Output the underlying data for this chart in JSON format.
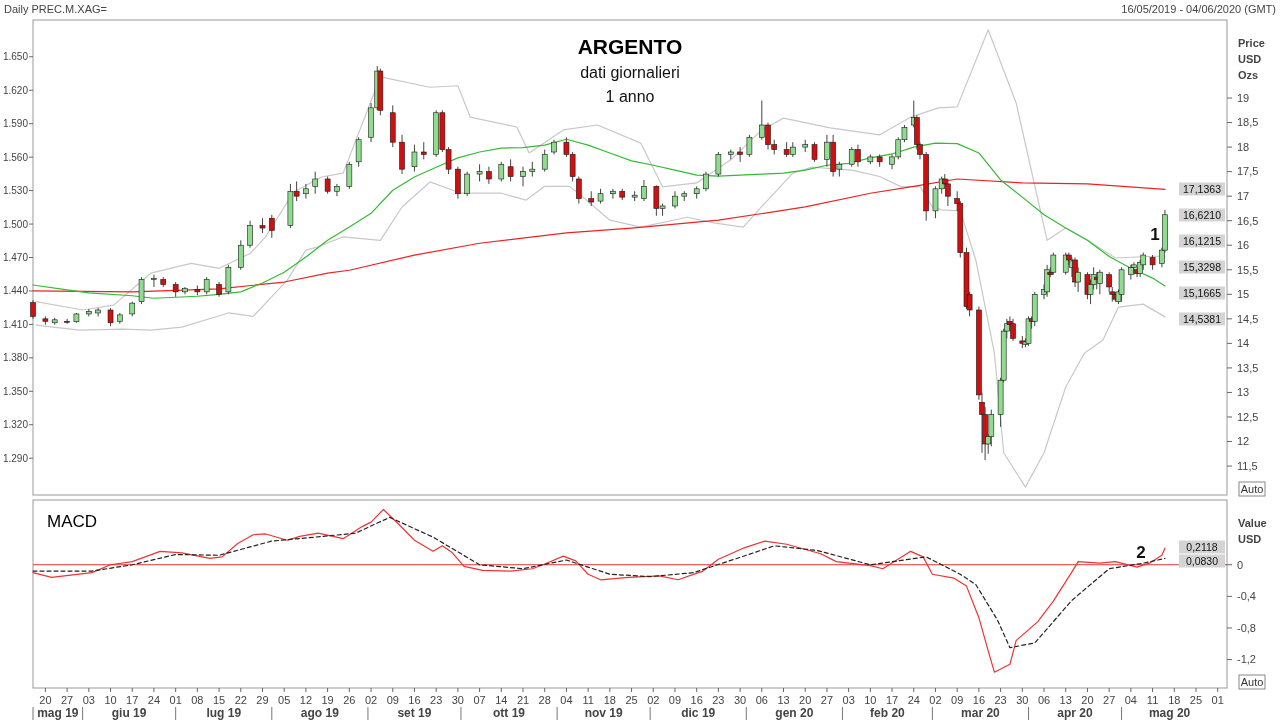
{
  "chart_data": [
    {
      "type": "candlestick",
      "title": "ARGENTO",
      "subtitle": "dati giornalieri\n1 anno",
      "y2label": "Price\nUSD\nOzs",
      "xlim": [
        "2019-05-16",
        "2020-06-04"
      ],
      "ylim": [
        1257,
        1683
      ],
      "yticks": [
        {
          "value": 1290,
          "label": "1.290"
        },
        {
          "value": 1320,
          "label": "1.320"
        },
        {
          "value": 1350,
          "label": "1.350"
        },
        {
          "value": 1380,
          "label": "1.380"
        },
        {
          "value": 1410,
          "label": "1.410"
        },
        {
          "value": 1440,
          "label": "1.440"
        },
        {
          "value": 1470,
          "label": "1.470"
        },
        {
          "value": 1500,
          "label": "1.500"
        },
        {
          "value": 1530,
          "label": "1.530"
        },
        {
          "value": 1560,
          "label": "1.560"
        },
        {
          "value": 1590,
          "label": "1.590"
        },
        {
          "value": 1620,
          "label": "1.620"
        },
        {
          "value": 1650,
          "label": "1.650"
        }
      ],
      "y2lim": [
        10.91,
        20.59
      ],
      "y2ticks": [
        {
          "value": 11.5,
          "label": "11,5"
        },
        12,
        {
          "value": 12.5,
          "label": "12,5"
        },
        13,
        {
          "value": 13.5,
          "label": "13,5"
        },
        14,
        {
          "value": 14.5,
          "label": "14,5"
        },
        15,
        {
          "value": 15.5,
          "label": "15,5"
        },
        16,
        {
          "value": 16.5,
          "label": "16,5"
        },
        17,
        {
          "value": 17.5,
          "label": "17,5"
        },
        18,
        {
          "value": 18.5,
          "label": "18,5"
        },
        19
      ],
      "tick_labels": "y",
      "series": [
        {
          "type": "line",
          "axis": "y2",
          "color": "#c8c8c8",
          "x": [
            "2019-05-17",
            "2019-06-01",
            "2019-06-11",
            "2019-06-23",
            "2019-07-06",
            "2019-07-15",
            "2019-07-25",
            "2019-07-30",
            "2019-08-08",
            "2019-08-17",
            "2019-08-24",
            "2019-09-05",
            "2019-09-21",
            "2019-09-30",
            "2019-10-04",
            "2019-10-19",
            "2019-10-23",
            "2019-11-03",
            "2019-11-14",
            "2019-11-28",
            "2019-12-05",
            "2019-12-16",
            "2019-12-27",
            "2020-01-06",
            "2020-01-13",
            "2020-01-28",
            "2020-02-13",
            "2020-02-23",
            "2020-03-03",
            "2020-03-09",
            "2020-03-19",
            "2020-03-28",
            "2020-04-07",
            "2020-04-13",
            "2020-04-20",
            "2020-04-29",
            "2020-05-09",
            "2020-05-15"
          ],
          "values": [
            14.85,
            14.68,
            14.78,
            15.43,
            15.63,
            15.53,
            15.83,
            16.17,
            17.08,
            17.39,
            17.47,
            19.43,
            19.22,
            19.25,
            18.61,
            18.41,
            17.88,
            18.35,
            18.45,
            18.08,
            17.19,
            17.27,
            17.74,
            18.35,
            18.59,
            18.39,
            18.25,
            18.61,
            18.8,
            18.82,
            20.39,
            18.9,
            16.1,
            16.35,
            16.1,
            15.74,
            15.77,
            15.78
          ]
        },
        {
          "type": "line",
          "axis": "y2",
          "color": "#c8c8c8",
          "x": [
            "2019-05-17",
            "2019-05-31",
            "2019-06-14",
            "2019-06-23",
            "2019-07-03",
            "2019-07-18",
            "2019-07-26",
            "2019-08-06",
            "2019-08-12",
            "2019-08-15",
            "2019-08-24",
            "2019-09-05",
            "2019-09-12",
            "2019-09-21",
            "2019-10-01",
            "2019-10-14",
            "2019-10-22",
            "2019-10-28",
            "2019-11-05",
            "2019-11-09",
            "2019-11-18",
            "2019-11-28",
            "2019-12-13",
            "2019-12-22",
            "2019-12-31",
            "2020-01-05",
            "2020-01-16",
            "2020-01-22",
            "2020-02-04",
            "2020-02-13",
            "2020-02-20",
            "2020-02-26",
            "2020-03-01",
            "2020-03-04",
            "2020-03-10",
            "2020-03-15",
            "2020-03-21",
            "2020-03-24",
            "2020-03-31",
            "2020-04-06",
            "2020-04-13",
            "2020-04-19",
            "2020-04-25",
            "2020-04-30",
            "2020-05-08",
            "2020-05-15"
          ],
          "values": [
            14.37,
            14.27,
            14.29,
            14.27,
            14.33,
            14.62,
            14.55,
            15.29,
            15.9,
            15.95,
            16.17,
            16.1,
            16.78,
            17.29,
            17.06,
            17.06,
            16.92,
            17.2,
            17.2,
            17.0,
            16.51,
            16.37,
            16.57,
            16.45,
            16.37,
            16.72,
            17.47,
            17.59,
            17.53,
            17.4,
            17.19,
            17.2,
            16.78,
            16.72,
            16.7,
            15.7,
            13.8,
            11.77,
            11.07,
            11.77,
            13.11,
            13.8,
            14.07,
            14.74,
            14.8,
            14.54
          ]
        },
        {
          "type": "line",
          "axis": "y2",
          "color": "#ee2222",
          "x": [
            "2019-05-16",
            "2019-06-17",
            "2019-07-15",
            "2019-08-05",
            "2019-08-19",
            "2019-08-26",
            "2019-09-16",
            "2019-10-07",
            "2019-11-04",
            "2019-11-25",
            "2019-12-23",
            "2020-01-20",
            "2020-02-10",
            "2020-02-24",
            "2020-03-09",
            "2020-03-30",
            "2020-04-20",
            "2020-05-15"
          ],
          "values": [
            15.07,
            15.05,
            15.11,
            15.25,
            15.43,
            15.49,
            15.8,
            16.04,
            16.25,
            16.35,
            16.51,
            16.78,
            17.06,
            17.2,
            17.35,
            17.27,
            17.25,
            17.14
          ]
        },
        {
          "type": "line",
          "axis": "y2",
          "color": "#33bb33",
          "x": [
            "2019-05-16",
            "2019-05-27",
            "2019-06-03",
            "2019-06-17",
            "2019-06-24",
            "2019-07-08",
            "2019-07-15",
            "2019-07-22",
            "2019-07-29",
            "2019-08-05",
            "2019-08-12",
            "2019-08-19",
            "2019-08-26",
            "2019-09-02",
            "2019-09-09",
            "2019-09-16",
            "2019-09-23",
            "2019-09-30",
            "2019-10-07",
            "2019-10-14",
            "2019-10-21",
            "2019-10-28",
            "2019-11-04",
            "2019-11-11",
            "2019-11-18",
            "2019-11-25",
            "2019-12-02",
            "2019-12-09",
            "2019-12-16",
            "2019-12-23",
            "2019-12-30",
            "2020-01-06",
            "2020-01-13",
            "2020-01-20",
            "2020-01-27",
            "2020-02-03",
            "2020-02-10",
            "2020-02-17",
            "2020-02-24",
            "2020-03-02",
            "2020-03-09",
            "2020-03-16",
            "2020-03-23",
            "2020-03-30",
            "2020-04-06",
            "2020-04-13",
            "2020-04-20",
            "2020-04-27",
            "2020-05-04",
            "2020-05-11",
            "2020-05-15"
          ],
          "values": [
            15.19,
            15.09,
            15.03,
            14.97,
            14.92,
            14.96,
            15.0,
            15.05,
            15.23,
            15.45,
            15.76,
            16.1,
            16.37,
            16.65,
            17.12,
            17.39,
            17.59,
            17.78,
            17.9,
            17.98,
            17.99,
            18.04,
            18.16,
            18.04,
            17.88,
            17.72,
            17.63,
            17.53,
            17.43,
            17.41,
            17.43,
            17.45,
            17.47,
            17.53,
            17.63,
            17.67,
            17.78,
            17.86,
            18.0,
            18.08,
            18.07,
            17.88,
            17.33,
            16.98,
            16.62,
            16.35,
            16.1,
            15.77,
            15.53,
            15.33,
            15.17
          ]
        },
        {
          "axis": "y2",
          "x": [
            "2019-05-16",
            "2019-05-20",
            "2019-05-23",
            "2019-05-27",
            "2019-05-30",
            "2019-06-03",
            "2019-06-06",
            "2019-06-10",
            "2019-06-13",
            "2019-06-17",
            "2019-06-20",
            "2019-06-24",
            "2019-06-27",
            "2019-07-01",
            "2019-07-04",
            "2019-07-08",
            "2019-07-11",
            "2019-07-15",
            "2019-07-18",
            "2019-07-22",
            "2019-07-25",
            "2019-07-29",
            "2019-08-01",
            "2019-08-07",
            "2019-08-09",
            "2019-08-12",
            "2019-08-15",
            "2019-08-19",
            "2019-08-22",
            "2019-08-26",
            "2019-08-29",
            "2019-09-02",
            "2019-09-04",
            "2019-09-05",
            "2019-09-09",
            "2019-09-12",
            "2019-09-16",
            "2019-09-19",
            "2019-09-23",
            "2019-09-25",
            "2019-09-27",
            "2019-09-30",
            "2019-10-03",
            "2019-10-07",
            "2019-10-10",
            "2019-10-14",
            "2019-10-17",
            "2019-10-21",
            "2019-10-24",
            "2019-10-28",
            "2019-10-31",
            "2019-11-04",
            "2019-11-06",
            "2019-11-08",
            "2019-11-12",
            "2019-11-15",
            "2019-11-19",
            "2019-11-22",
            "2019-11-26",
            "2019-11-29",
            "2019-12-03",
            "2019-12-05",
            "2019-12-09",
            "2019-12-12",
            "2019-12-16",
            "2019-12-19",
            "2019-12-23",
            "2019-12-27",
            "2019-12-30",
            "2020-01-02",
            "2020-01-06",
            "2020-01-08",
            "2020-01-10",
            "2020-01-14",
            "2020-01-16",
            "2020-01-20",
            "2020-01-23",
            "2020-01-27",
            "2020-01-29",
            "2020-01-31",
            "2020-02-04",
            "2020-02-06",
            "2020-02-10",
            "2020-02-13",
            "2020-02-17",
            "2020-02-19",
            "2020-02-21",
            "2020-02-24",
            "2020-02-25",
            "2020-02-26",
            "2020-02-28",
            "2020-03-02",
            "2020-03-04",
            "2020-03-05",
            "2020-03-06",
            "2020-03-09",
            "2020-03-10",
            "2020-03-12",
            "2020-03-13",
            "2020-03-16",
            "2020-03-17",
            "2020-03-18",
            "2020-03-19",
            "2020-03-20",
            "2020-03-23",
            "2020-03-24",
            "2020-03-25",
            "2020-03-26",
            "2020-03-27",
            "2020-03-30",
            "2020-03-31",
            "2020-04-01",
            "2020-04-02",
            "2020-04-03",
            "2020-04-06",
            "2020-04-07",
            "2020-04-08",
            "2020-04-09",
            "2020-04-13",
            "2020-04-14",
            "2020-04-15",
            "2020-04-16",
            "2020-04-17",
            "2020-04-20",
            "2020-04-21",
            "2020-04-22",
            "2020-04-23",
            "2020-04-24",
            "2020-04-27",
            "2020-04-28",
            "2020-04-29",
            "2020-04-30",
            "2020-05-01",
            "2020-05-04",
            "2020-05-05",
            "2020-05-06",
            "2020-05-07",
            "2020-05-08",
            "2020-05-11",
            "2020-05-14",
            "2020-05-15"
          ],
          "ohlc": [
            [
              14.83,
              14.88,
              14.5,
              14.55
            ],
            [
              14.5,
              14.55,
              14.38,
              14.45
            ],
            [
              14.42,
              14.52,
              14.38,
              14.48
            ],
            [
              14.45,
              14.5,
              14.4,
              14.44
            ],
            [
              14.44,
              14.62,
              14.42,
              14.6
            ],
            [
              14.6,
              14.7,
              14.55,
              14.65
            ],
            [
              14.62,
              14.72,
              14.55,
              14.68
            ],
            [
              14.68,
              14.72,
              14.35,
              14.42
            ],
            [
              14.45,
              14.62,
              14.4,
              14.58
            ],
            [
              14.6,
              14.85,
              14.55,
              14.82
            ],
            [
              14.85,
              15.35,
              14.8,
              15.3
            ],
            [
              15.3,
              15.4,
              15.15,
              15.32
            ],
            [
              15.3,
              15.35,
              15.15,
              15.2
            ],
            [
              15.2,
              15.25,
              14.95,
              15.05
            ],
            [
              15.05,
              15.15,
              15.0,
              15.12
            ],
            [
              15.1,
              15.18,
              14.98,
              15.05
            ],
            [
              15.05,
              15.35,
              15.0,
              15.3
            ],
            [
              15.2,
              15.25,
              14.95,
              15.0
            ],
            [
              15.05,
              15.6,
              15.0,
              15.55
            ],
            [
              15.55,
              16.1,
              15.5,
              16.0
            ],
            [
              16.0,
              16.5,
              15.95,
              16.4
            ],
            [
              16.4,
              16.55,
              16.25,
              16.35
            ],
            [
              16.55,
              16.62,
              16.15,
              16.3
            ],
            [
              16.4,
              17.25,
              16.35,
              17.1
            ],
            [
              17.1,
              17.3,
              16.9,
              17.0
            ],
            [
              17.05,
              17.25,
              16.95,
              17.15
            ],
            [
              17.2,
              17.5,
              17.05,
              17.35
            ],
            [
              17.35,
              17.4,
              17.05,
              17.1
            ],
            [
              17.1,
              17.25,
              17.0,
              17.2
            ],
            [
              17.2,
              17.7,
              17.15,
              17.65
            ],
            [
              17.7,
              18.2,
              17.6,
              18.15
            ],
            [
              18.2,
              18.9,
              18.1,
              18.8
            ],
            [
              18.8,
              19.65,
              18.75,
              19.55
            ],
            [
              19.55,
              19.6,
              18.65,
              18.75
            ],
            [
              18.7,
              18.85,
              18.0,
              18.1
            ],
            [
              18.1,
              18.25,
              17.45,
              17.55
            ],
            [
              17.6,
              18.05,
              17.5,
              17.9
            ],
            [
              17.9,
              18.1,
              17.75,
              17.85
            ],
            [
              17.85,
              18.75,
              17.8,
              18.7
            ],
            [
              18.7,
              18.75,
              17.9,
              17.95
            ],
            [
              17.95,
              18.0,
              17.45,
              17.55
            ],
            [
              17.55,
              17.6,
              16.95,
              17.05
            ],
            [
              17.05,
              17.5,
              17.0,
              17.45
            ],
            [
              17.45,
              17.65,
              17.3,
              17.5
            ],
            [
              17.5,
              17.6,
              17.25,
              17.35
            ],
            [
              17.35,
              17.7,
              17.3,
              17.65
            ],
            [
              17.6,
              17.75,
              17.3,
              17.4
            ],
            [
              17.4,
              17.6,
              17.2,
              17.5
            ],
            [
              17.5,
              17.7,
              17.4,
              17.55
            ],
            [
              17.55,
              17.95,
              17.5,
              17.85
            ],
            [
              17.9,
              18.15,
              17.85,
              18.1
            ],
            [
              18.1,
              18.2,
              17.8,
              17.85
            ],
            [
              17.85,
              17.9,
              17.3,
              17.4
            ],
            [
              17.35,
              17.4,
              16.85,
              16.95
            ],
            [
              16.95,
              17.1,
              16.8,
              16.88
            ],
            [
              16.9,
              17.15,
              16.85,
              17.05
            ],
            [
              17.05,
              17.15,
              16.95,
              17.1
            ],
            [
              17.1,
              17.15,
              16.92,
              16.98
            ],
            [
              16.98,
              17.1,
              16.9,
              17.02
            ],
            [
              16.95,
              17.33,
              16.9,
              17.2
            ],
            [
              17.2,
              17.22,
              16.6,
              16.75
            ],
            [
              16.75,
              16.85,
              16.6,
              16.8
            ],
            [
              16.8,
              17.1,
              16.75,
              17.0
            ],
            [
              17.0,
              17.1,
              16.9,
              17.05
            ],
            [
              17.05,
              17.2,
              16.95,
              17.15
            ],
            [
              17.15,
              17.5,
              17.1,
              17.45
            ],
            [
              17.45,
              17.9,
              17.4,
              17.85
            ],
            [
              17.85,
              17.95,
              17.75,
              17.9
            ],
            [
              17.9,
              18.0,
              17.7,
              17.85
            ],
            [
              17.85,
              18.25,
              17.8,
              18.2
            ],
            [
              18.2,
              18.95,
              18.15,
              18.45
            ],
            [
              18.45,
              18.5,
              17.95,
              18.05
            ],
            [
              18.05,
              18.15,
              17.85,
              17.95
            ],
            [
              17.95,
              18.1,
              17.8,
              17.85
            ],
            [
              17.85,
              18.1,
              17.8,
              18.0
            ],
            [
              18.0,
              18.15,
              17.9,
              18.05
            ],
            [
              18.05,
              18.1,
              17.7,
              17.75
            ],
            [
              17.75,
              18.25,
              17.6,
              18.1
            ],
            [
              18.1,
              18.25,
              17.4,
              17.5
            ],
            [
              17.55,
              17.7,
              17.4,
              17.65
            ],
            [
              17.65,
              18.0,
              17.6,
              17.95
            ],
            [
              17.95,
              18.05,
              17.6,
              17.7
            ],
            [
              17.7,
              17.85,
              17.65,
              17.8
            ],
            [
              17.8,
              17.85,
              17.6,
              17.7
            ],
            [
              17.65,
              17.85,
              17.55,
              17.8
            ],
            [
              17.8,
              18.2,
              17.75,
              18.15
            ],
            [
              18.15,
              18.45,
              18.1,
              18.4
            ],
            [
              18.45,
              18.95,
              18.4,
              18.6
            ],
            [
              18.6,
              18.65,
              17.95,
              18.05
            ],
            [
              18.05,
              18.1,
              17.75,
              17.85
            ],
            [
              17.85,
              17.9,
              16.5,
              16.7
            ],
            [
              16.7,
              17.2,
              16.55,
              17.15
            ],
            [
              17.15,
              17.4,
              17.05,
              17.35
            ],
            [
              17.35,
              17.45,
              17.15,
              17.25
            ],
            [
              17.25,
              17.35,
              16.8,
              17.0
            ],
            [
              16.95,
              17.1,
              16.7,
              16.85
            ],
            [
              16.85,
              16.9,
              15.75,
              15.85
            ],
            [
              15.85,
              15.95,
              14.7,
              14.75
            ],
            [
              15.0,
              15.05,
              14.55,
              14.68
            ],
            [
              14.68,
              14.75,
              12.85,
              12.95
            ],
            [
              12.8,
              13.0,
              11.77,
              12.55
            ],
            [
              12.55,
              12.7,
              11.62,
              11.95
            ],
            [
              11.95,
              12.15,
              11.75,
              12.1
            ],
            [
              12.1,
              12.65,
              11.9,
              12.55
            ],
            [
              12.55,
              13.3,
              12.3,
              13.25
            ],
            [
              13.25,
              14.3,
              13.2,
              14.25
            ],
            [
              14.25,
              14.5,
              14.1,
              14.4
            ],
            [
              14.45,
              14.55,
              14.25,
              14.38
            ],
            [
              14.4,
              14.5,
              14.05,
              14.1
            ],
            [
              14.05,
              14.15,
              13.9,
              14.0
            ],
            [
              13.98,
              14.1,
              13.92,
              14.03
            ],
            [
              14.0,
              14.55,
              13.95,
              14.5
            ],
            [
              14.5,
              14.55,
              14.3,
              14.45
            ],
            [
              14.45,
              15.05,
              14.35,
              15.0
            ],
            [
              15.0,
              15.2,
              14.9,
              15.1
            ],
            [
              15.05,
              15.6,
              14.95,
              15.5
            ],
            [
              15.45,
              15.55,
              15.35,
              15.4
            ],
            [
              15.45,
              15.85,
              15.4,
              15.8
            ],
            [
              15.45,
              15.85,
              15.4,
              15.8
            ],
            [
              15.8,
              15.85,
              15.6,
              15.7
            ],
            [
              15.55,
              15.75,
              15.35,
              15.68
            ],
            [
              15.7,
              15.75,
              15.15,
              15.25
            ],
            [
              15.25,
              15.55,
              15.05,
              15.45
            ],
            [
              15.4,
              15.45,
              14.9,
              15.0
            ],
            [
              15.0,
              15.3,
              14.8,
              15.2
            ],
            [
              15.2,
              15.55,
              15.1,
              15.4
            ],
            [
              15.35,
              15.45,
              15.1,
              15.3
            ],
            [
              15.22,
              15.5,
              15.0,
              15.45
            ],
            [
              15.4,
              15.45,
              15.05,
              15.15
            ],
            [
              15.05,
              15.15,
              14.85,
              15.0
            ],
            [
              15.0,
              15.05,
              14.85,
              14.9
            ],
            [
              14.85,
              15.1,
              14.8,
              15.05
            ],
            [
              15.0,
              15.55,
              14.85,
              15.5
            ],
            [
              15.4,
              15.6,
              15.3,
              15.55
            ],
            [
              15.55,
              15.65,
              15.4,
              15.6
            ],
            [
              15.5,
              15.55,
              15.35,
              15.42
            ],
            [
              15.42,
              15.7,
              15.35,
              15.65
            ],
            [
              15.6,
              15.85,
              15.5,
              15.8
            ],
            [
              15.75,
              15.8,
              15.5,
              15.6
            ],
            [
              15.63,
              15.95,
              15.55,
              15.9
            ],
            [
              15.9,
              16.72,
              15.85,
              16.621
            ]
          ]
        }
      ],
      "annotations": [
        "Daily PREC.M.XAG=",
        "16/05/2019 - 04/06/2020 (GMT)",
        "1",
        "17,1363",
        "16,6210",
        "16,1215",
        "15,3298",
        "15,1665",
        "14,5381",
        "Auto"
      ]
    },
    {
      "type": "line",
      "title": "MACD",
      "y2label": "Value\nUSD",
      "xlim": [
        "2019-05-16",
        "2020-06-04"
      ],
      "y2lim": [
        -1.56,
        0.82
      ],
      "y2ticks": [
        0,
        {
          "value": -0.4,
          "label": "-0,4"
        },
        {
          "value": -0.8,
          "label": "-0,8"
        },
        {
          "value": -1.2,
          "label": "-1,2"
        }
      ],
      "xticks": [
        {
          "value": "2019-05-20",
          "label": "20"
        },
        {
          "value": "2019-05-27",
          "label": "27"
        },
        {
          "value": "2019-06-03",
          "label": "03"
        },
        {
          "value": "2019-06-10",
          "label": "10"
        },
        {
          "value": "2019-06-17",
          "label": "17"
        },
        {
          "value": "2019-06-24",
          "label": "24"
        },
        {
          "value": "2019-07-01",
          "label": "01"
        },
        {
          "value": "2019-07-08",
          "label": "08"
        },
        {
          "value": "2019-07-15",
          "label": "15"
        },
        {
          "value": "2019-07-22",
          "label": "22"
        },
        {
          "value": "2019-07-29",
          "label": "29"
        },
        {
          "value": "2019-08-05",
          "label": "05"
        },
        {
          "value": "2019-08-12",
          "label": "12"
        },
        {
          "value": "2019-08-19",
          "label": "19"
        },
        {
          "value": "2019-08-26",
          "label": "26"
        },
        {
          "value": "2019-09-02",
          "label": "02"
        },
        {
          "value": "2019-09-09",
          "label": "09"
        },
        {
          "value": "2019-09-16",
          "label": "16"
        },
        {
          "value": "2019-09-23",
          "label": "23"
        },
        {
          "value": "2019-09-30",
          "label": "30"
        },
        {
          "value": "2019-10-07",
          "label": "07"
        },
        {
          "value": "2019-10-14",
          "label": "14"
        },
        {
          "value": "2019-10-21",
          "label": "21"
        },
        {
          "value": "2019-10-28",
          "label": "28"
        },
        {
          "value": "2019-11-04",
          "label": "04"
        },
        {
          "value": "2019-11-11",
          "label": "11"
        },
        {
          "value": "2019-11-18",
          "label": "18"
        },
        {
          "value": "2019-11-25",
          "label": "25"
        },
        {
          "value": "2019-12-02",
          "label": "02"
        },
        {
          "value": "2019-12-09",
          "label": "09"
        },
        {
          "value": "2019-12-16",
          "label": "16"
        },
        {
          "value": "2019-12-23",
          "label": "23"
        },
        {
          "value": "2019-12-30",
          "label": "30"
        },
        {
          "value": "2020-01-06",
          "label": "06"
        },
        {
          "value": "2020-01-13",
          "label": "13"
        },
        {
          "value": "2020-01-20",
          "label": "20"
        },
        {
          "value": "2020-01-27",
          "label": "27"
        },
        {
          "value": "2020-02-03",
          "label": "03"
        },
        {
          "value": "2020-02-10",
          "label": "10"
        },
        {
          "value": "2020-02-17",
          "label": "17"
        },
        {
          "value": "2020-02-24",
          "label": "24"
        },
        {
          "value": "2020-03-02",
          "label": "02"
        },
        {
          "value": "2020-03-09",
          "label": "09"
        },
        {
          "value": "2020-03-16",
          "label": "16"
        },
        {
          "value": "2020-03-23",
          "label": "23"
        },
        {
          "value": "2020-03-30",
          "label": "30"
        },
        {
          "value": "2020-04-06",
          "label": "06"
        },
        {
          "value": "2020-04-13",
          "label": "13"
        },
        {
          "value": "2020-04-20",
          "label": "20"
        },
        {
          "value": "2020-04-27",
          "label": "27"
        },
        {
          "value": "2020-05-04",
          "label": "04"
        },
        {
          "value": "2020-05-11",
          "label": "11"
        },
        {
          "value": "2020-05-18",
          "label": "18"
        },
        {
          "value": "2020-05-25",
          "label": "25"
        },
        {
          "value": "2020-06-01",
          "label": "01"
        }
      ],
      "ref_lines": [
        {
          "axis": "y2",
          "value": 0,
          "color": "#dd3333"
        }
      ],
      "series": [
        {
          "axis": "y2",
          "color": "#222222",
          "line_style": "dashed",
          "x": [
            "2019-05-16",
            "2019-06-04",
            "2019-06-17",
            "2019-07-01",
            "2019-07-15",
            "2019-08-01",
            "2019-08-15",
            "2019-08-28",
            "2019-09-08",
            "2019-09-22",
            "2019-10-07",
            "2019-10-21",
            "2019-11-04",
            "2019-11-18",
            "2019-12-01",
            "2019-12-15",
            "2020-01-01",
            "2020-01-10",
            "2020-01-24",
            "2020-02-10",
            "2020-02-28",
            "2020-03-10",
            "2020-03-15",
            "2020-03-22",
            "2020-03-26",
            "2020-04-03",
            "2020-04-15",
            "2020-04-27",
            "2020-05-08",
            "2020-05-15"
          ],
          "values": [
            -0.08,
            -0.08,
            0.0,
            0.13,
            0.12,
            0.3,
            0.35,
            0.4,
            0.6,
            0.35,
            0.0,
            -0.05,
            0.06,
            -0.12,
            -0.15,
            -0.1,
            0.12,
            0.24,
            0.18,
            0.0,
            0.1,
            -0.12,
            -0.25,
            -0.7,
            -1.05,
            -0.99,
            -0.45,
            -0.05,
            0.02,
            0.08
          ]
        },
        {
          "axis": "y2",
          "color": "#ee3333",
          "line_style": "solid",
          "x": [
            "2019-05-16",
            "2019-05-22",
            "2019-06-04",
            "2019-06-10",
            "2019-06-17",
            "2019-06-26",
            "2019-07-03",
            "2019-07-12",
            "2019-07-16",
            "2019-07-21",
            "2019-07-26",
            "2019-07-30",
            "2019-08-06",
            "2019-08-10",
            "2019-08-16",
            "2019-08-24",
            "2019-08-30",
            "2019-09-02",
            "2019-09-06",
            "2019-09-11",
            "2019-09-16",
            "2019-09-22",
            "2019-09-25",
            "2019-09-28",
            "2019-10-02",
            "2019-10-08",
            "2019-10-17",
            "2019-10-24",
            "2019-10-28",
            "2019-11-03",
            "2019-11-07",
            "2019-11-11",
            "2019-11-15",
            "2019-11-24",
            "2019-12-04",
            "2019-12-10",
            "2019-12-18",
            "2019-12-23",
            "2019-12-31",
            "2020-01-07",
            "2020-01-14",
            "2020-01-25",
            "2020-01-30",
            "2020-02-10",
            "2020-02-14",
            "2020-02-23",
            "2020-02-27",
            "2020-03-01",
            "2020-03-08",
            "2020-03-12",
            "2020-03-16",
            "2020-03-19",
            "2020-03-21",
            "2020-03-26",
            "2020-03-28",
            "2020-04-04",
            "2020-04-09",
            "2020-04-15",
            "2020-04-17",
            "2020-04-24",
            "2020-04-29",
            "2020-05-06",
            "2020-05-10",
            "2020-05-14",
            "2020-05-15"
          ],
          "values": [
            -0.1,
            -0.16,
            -0.1,
            0.0,
            0.04,
            0.17,
            0.15,
            0.08,
            0.1,
            0.27,
            0.38,
            0.39,
            0.31,
            0.36,
            0.4,
            0.33,
            0.48,
            0.54,
            0.7,
            0.51,
            0.31,
            0.17,
            0.24,
            0.16,
            -0.02,
            -0.07,
            -0.08,
            -0.05,
            0.01,
            0.11,
            0.05,
            -0.12,
            -0.19,
            -0.16,
            -0.14,
            -0.19,
            -0.08,
            0.07,
            0.21,
            0.3,
            0.26,
            0.14,
            0.04,
            -0.01,
            -0.05,
            0.17,
            0.1,
            -0.12,
            -0.17,
            -0.27,
            -0.67,
            -1.09,
            -1.36,
            -1.26,
            -0.96,
            -0.72,
            -0.46,
            -0.09,
            0.04,
            0.02,
            0.04,
            -0.03,
            0.02,
            0.12,
            0.21
          ]
        }
      ],
      "annotations": [
        "2",
        "0,2118",
        "0,0830",
        "mag 19",
        "giu 19",
        "lug 19",
        "ago 19",
        "set 19",
        "ott 19",
        "nov 19",
        "dic 19",
        "gen 20",
        "feb 20",
        "mar 20",
        "apr 20",
        "mag 20",
        "Auto"
      ]
    }
  ]
}
